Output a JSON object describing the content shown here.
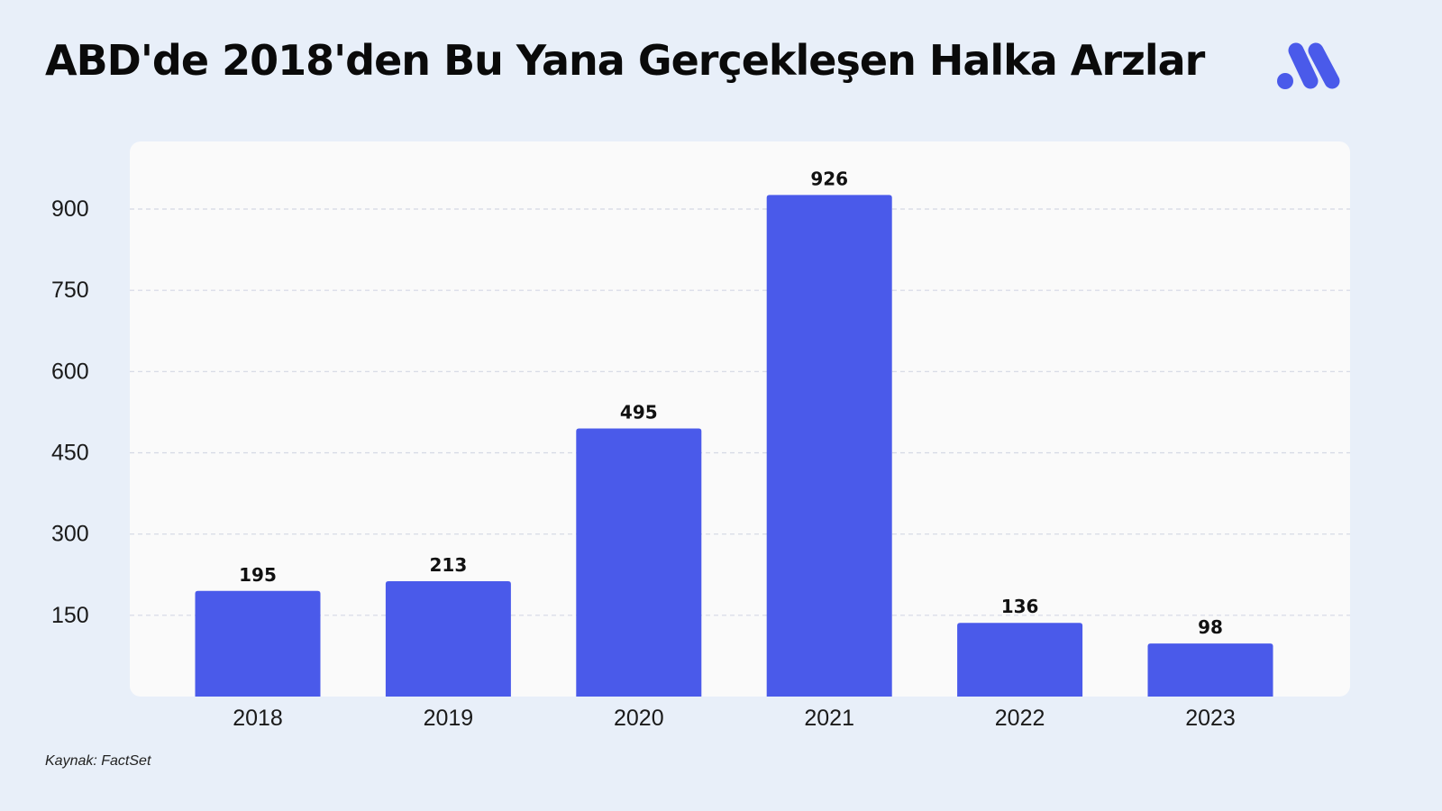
{
  "title": "ABD'de 2018'den Bu Yana Gerçekleşen Halka Arzlar",
  "source": "Kaynak: FactSet",
  "logo_icon": "brand-logo-icon",
  "colors": {
    "bar": "#4a5aea",
    "background": "#e8eff9",
    "panel": "#fafafa",
    "grid": "#d4d8e4"
  },
  "chart_data": {
    "type": "bar",
    "categories": [
      "2018",
      "2019",
      "2020",
      "2021",
      "2022",
      "2023"
    ],
    "values": [
      195,
      213,
      495,
      926,
      136,
      98
    ],
    "data_labels": [
      "195",
      "213",
      "495",
      "926",
      "136",
      "98"
    ],
    "yticks": [
      150,
      300,
      450,
      600,
      750,
      900
    ],
    "ylim": [
      0,
      1020
    ],
    "grid": true,
    "title": "ABD'de 2018'den Bu Yana Gerçekleşen Halka Arzlar",
    "xlabel": "",
    "ylabel": ""
  }
}
